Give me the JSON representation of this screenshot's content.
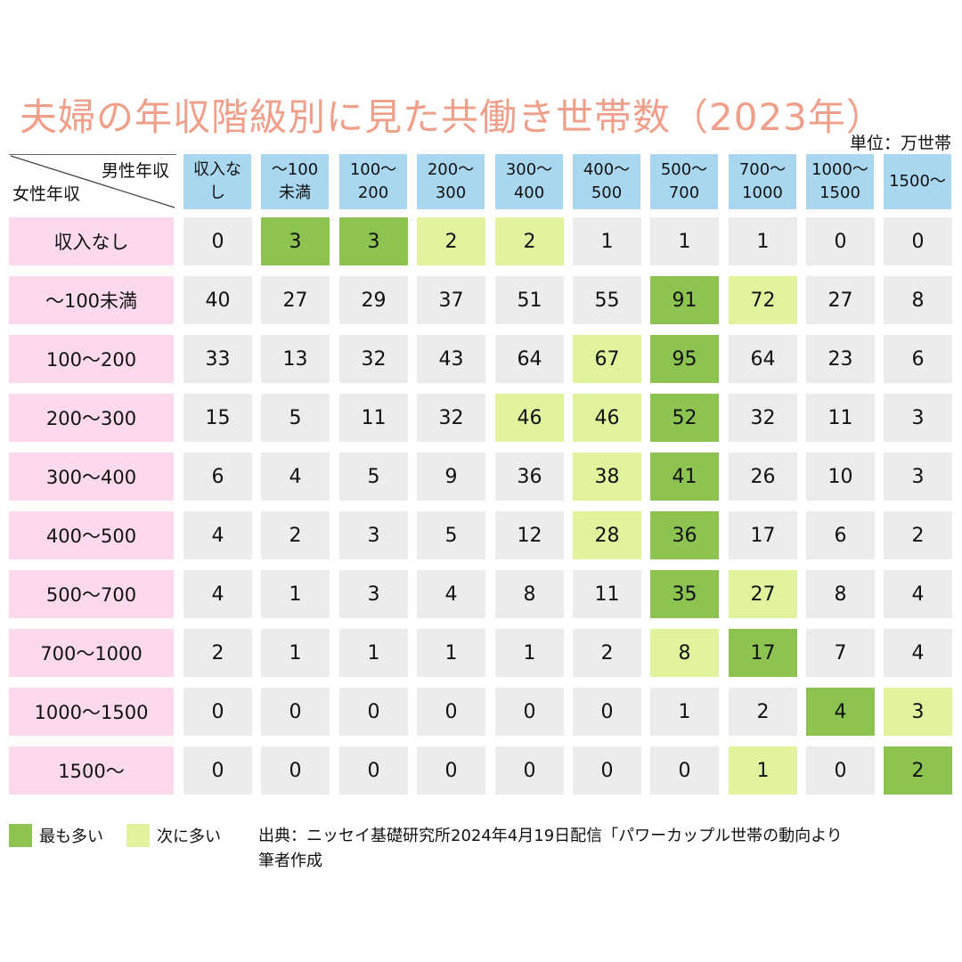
{
  "title": "夫婦の年収階級別に見た共働き世帯数（2023年）",
  "unit": "単位：万世帯",
  "corner": {
    "male_label": "男性年収",
    "female_label": "女性年収"
  },
  "legend": {
    "most_label": "最も多い",
    "most_color": "#8cc351",
    "next_label": "次に多い",
    "next_color": "#e2f39e"
  },
  "source": {
    "line1": "出典：ニッセイ基礎研究所2024年4月19日配信「パワーカップル世帯の動向より",
    "line2": "筆者作成"
  },
  "chart_data": {
    "type": "table",
    "columns": [
      [
        "収入な",
        "し"
      ],
      [
        "～100",
        "未満"
      ],
      [
        "100～",
        "200"
      ],
      [
        "200～",
        "300"
      ],
      [
        "300～",
        "400"
      ],
      [
        "400～",
        "500"
      ],
      [
        "500～",
        "700"
      ],
      [
        "700～",
        "1000"
      ],
      [
        "1000～",
        "1500"
      ],
      [
        "1500～"
      ]
    ],
    "rows": [
      "収入なし",
      "～100未満",
      "100～200",
      "200～300",
      "300～400",
      "400～500",
      "500～700",
      "700～1000",
      "1000～1500",
      "1500～"
    ],
    "values": [
      [
        0,
        3,
        3,
        2,
        2,
        1,
        1,
        1,
        0,
        0
      ],
      [
        40,
        27,
        29,
        37,
        51,
        55,
        91,
        72,
        27,
        8
      ],
      [
        33,
        13,
        32,
        43,
        64,
        67,
        95,
        64,
        23,
        6
      ],
      [
        15,
        5,
        11,
        32,
        46,
        46,
        52,
        32,
        11,
        3
      ],
      [
        6,
        4,
        5,
        9,
        36,
        38,
        41,
        26,
        10,
        3
      ],
      [
        4,
        2,
        3,
        5,
        12,
        28,
        36,
        17,
        6,
        2
      ],
      [
        4,
        1,
        3,
        4,
        8,
        11,
        35,
        27,
        8,
        4
      ],
      [
        2,
        1,
        1,
        1,
        1,
        2,
        8,
        17,
        7,
        4
      ],
      [
        0,
        0,
        0,
        0,
        0,
        0,
        1,
        2,
        4,
        3
      ],
      [
        0,
        0,
        0,
        0,
        0,
        0,
        0,
        1,
        0,
        2
      ]
    ],
    "highlight": [
      [
        "",
        "max",
        "max",
        "next",
        "next",
        "",
        "",
        "",
        "",
        ""
      ],
      [
        "",
        "",
        "",
        "",
        "",
        "",
        "max",
        "next",
        "",
        ""
      ],
      [
        "",
        "",
        "",
        "",
        "",
        "next",
        "max",
        "",
        "",
        ""
      ],
      [
        "",
        "",
        "",
        "",
        "next",
        "next",
        "max",
        "",
        "",
        ""
      ],
      [
        "",
        "",
        "",
        "",
        "",
        "next",
        "max",
        "",
        "",
        ""
      ],
      [
        "",
        "",
        "",
        "",
        "",
        "next",
        "max",
        "",
        "",
        ""
      ],
      [
        "",
        "",
        "",
        "",
        "",
        "",
        "max",
        "next",
        "",
        ""
      ],
      [
        "",
        "",
        "",
        "",
        "",
        "",
        "next",
        "max",
        "",
        ""
      ],
      [
        "",
        "",
        "",
        "",
        "",
        "",
        "",
        "",
        "max",
        "next"
      ],
      [
        "",
        "",
        "",
        "",
        "",
        "",
        "",
        "next",
        "",
        "max"
      ]
    ]
  }
}
